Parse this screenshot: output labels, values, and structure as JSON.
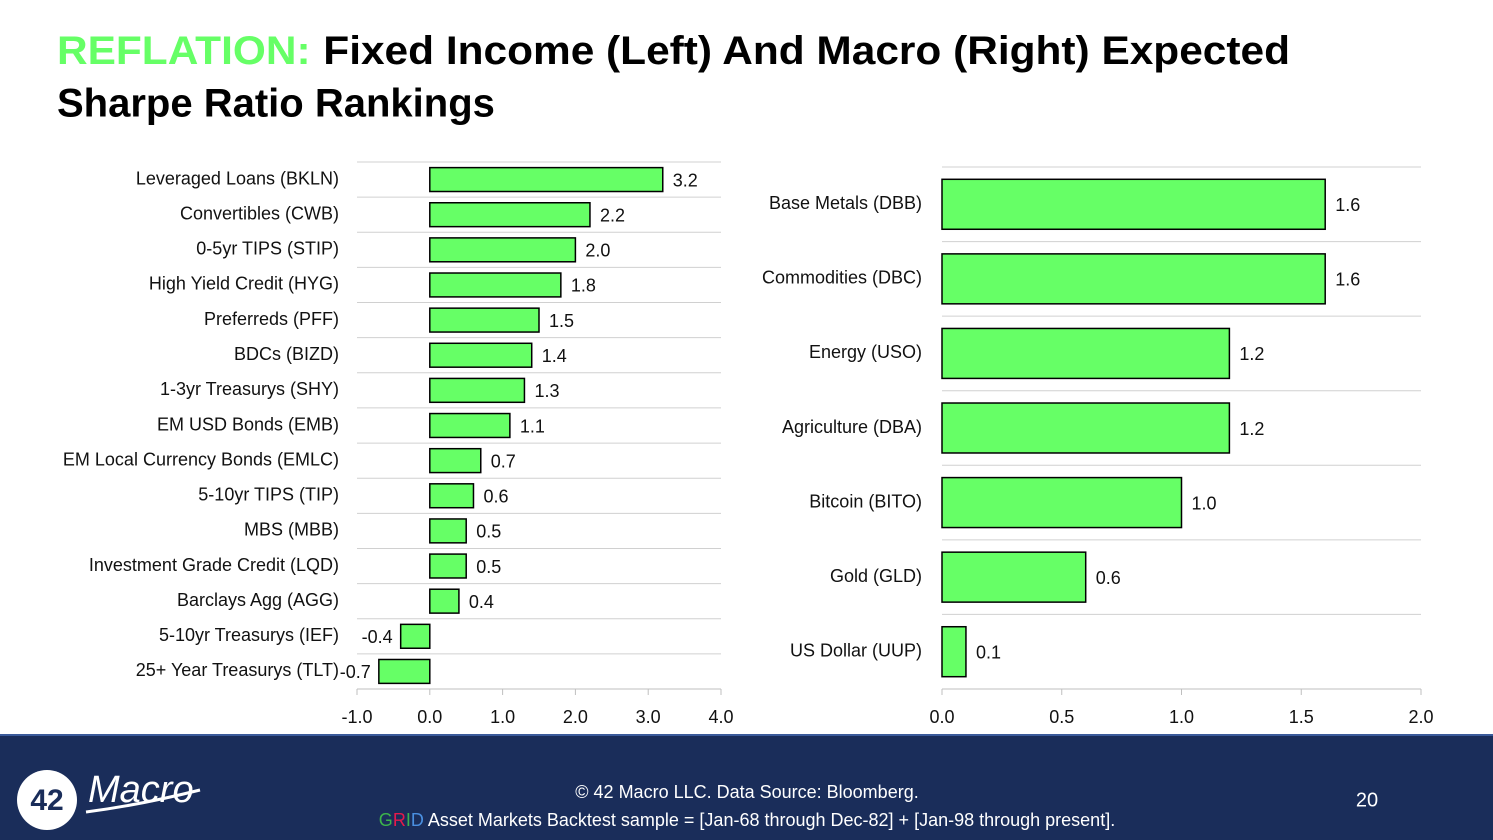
{
  "title": {
    "highlight": "REFLATION:",
    "lines": [
      "Fixed Income (Left) And Macro (Right) Expected",
      "Sharpe Ratio Rankings"
    ]
  },
  "chart_data": [
    {
      "type": "bar",
      "orientation": "horizontal",
      "categories": [
        "Leveraged Loans (BKLN)",
        "Convertibles (CWB)",
        "0-5yr TIPS (STIP)",
        "High Yield Credit (HYG)",
        "Preferreds (PFF)",
        "BDCs (BIZD)",
        "1-3yr Treasurys (SHY)",
        "EM USD Bonds (EMB)",
        "EM Local Currency Bonds (EMLC)",
        "5-10yr TIPS (TIP)",
        "MBS (MBB)",
        "Investment Grade Credit (LQD)",
        "Barclays Agg (AGG)",
        "5-10yr Treasurys (IEF)",
        "25+ Year Treasurys (TLT)"
      ],
      "values": [
        3.2,
        2.2,
        2.0,
        1.8,
        1.5,
        1.4,
        1.3,
        1.1,
        0.7,
        0.6,
        0.5,
        0.5,
        0.4,
        -0.4,
        -0.7
      ],
      "value_labels": [
        "3.2",
        "2.2",
        "2.0",
        "1.8",
        "1.5",
        "1.4",
        "1.3",
        "1.1",
        "0.7",
        "0.6",
        "0.5",
        "0.5",
        "0.4",
        "-0.4",
        "-0.7"
      ],
      "color": "#66ff66",
      "edge_color": "#000000",
      "negative_label_color": "#ff0000",
      "xlim": [
        -1.0,
        4.0
      ],
      "xticks": [
        {
          "value": -1,
          "label": "-1.0"
        },
        {
          "value": 0,
          "label": "0.0"
        },
        {
          "value": 1,
          "label": "1.0"
        },
        {
          "value": 2,
          "label": "2.0"
        },
        {
          "value": 3,
          "label": "3.0"
        },
        {
          "value": 4,
          "label": "4.0"
        }
      ],
      "category_separators": true
    },
    {
      "type": "bar",
      "orientation": "horizontal",
      "categories": [
        "Base Metals (DBB)",
        "Commodities (DBC)",
        "Energy (USO)",
        "Agriculture (DBA)",
        "Bitcoin (BITO)",
        "Gold (GLD)",
        "US Dollar (UUP)"
      ],
      "values": [
        1.6,
        1.6,
        1.2,
        1.2,
        1.0,
        0.6,
        0.1
      ],
      "value_labels": [
        "1.6",
        "1.6",
        "1.2",
        "1.2",
        "1.0",
        "0.6",
        "0.1"
      ],
      "color": "#66ff66",
      "edge_color": "#000000",
      "negative_label_color": "#ff0000",
      "xlim": [
        0,
        2.0
      ],
      "xticks": [
        {
          "value": 0,
          "label": "0.0"
        },
        {
          "value": 0.5,
          "label": "0.5"
        },
        {
          "value": 1,
          "label": "1.0"
        },
        {
          "value": 1.5,
          "label": "1.5"
        },
        {
          "value": 2,
          "label": "2.0"
        }
      ],
      "category_separators": true
    }
  ],
  "footer": {
    "copyright": "© 42 Macro LLC. Data Source: Bloomberg.",
    "grid_letters": [
      "G",
      "R",
      "I",
      "D"
    ],
    "sample": " Asset Markets Backtest sample = [Jan-68 through Dec-82] + [Jan-98 through present].",
    "page_number": "20"
  },
  "logo": {
    "number": "42",
    "word": "Macro"
  }
}
